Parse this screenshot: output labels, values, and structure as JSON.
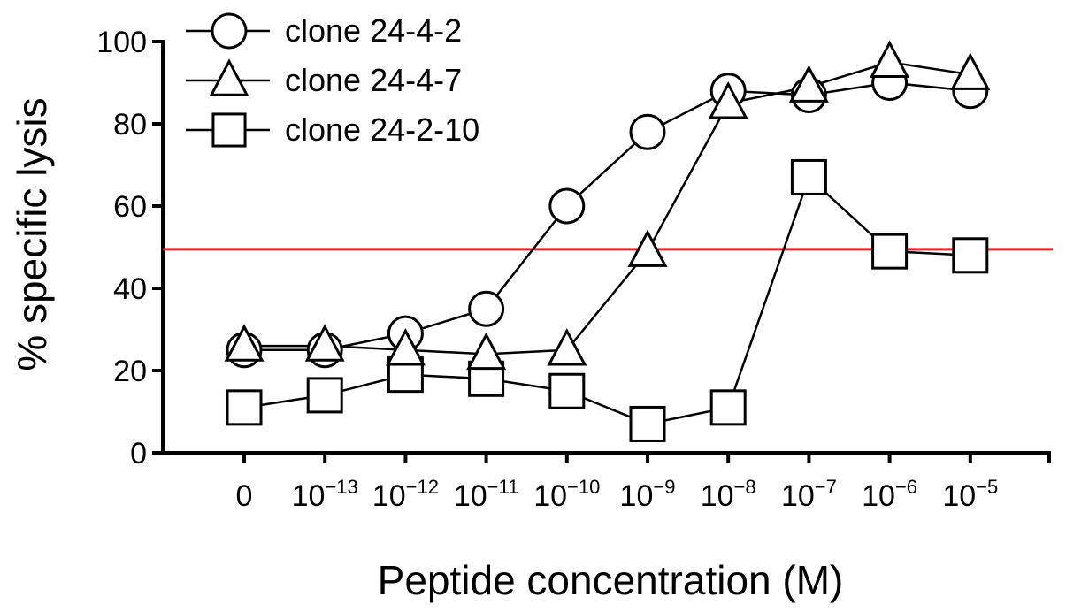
{
  "chart_data": {
    "type": "line",
    "xlabel": "Peptide concentration (M)",
    "ylabel": "% specific lysis",
    "ylim": [
      0,
      100
    ],
    "yticks": [
      0,
      20,
      40,
      60,
      80,
      100
    ],
    "categories": [
      {
        "base": "0",
        "exp": ""
      },
      {
        "base": "10",
        "exp": "−13"
      },
      {
        "base": "10",
        "exp": "−12"
      },
      {
        "base": "10",
        "exp": "−11"
      },
      {
        "base": "10",
        "exp": "−10"
      },
      {
        "base": "10",
        "exp": "−9"
      },
      {
        "base": "10",
        "exp": "−8"
      },
      {
        "base": "10",
        "exp": "−7"
      },
      {
        "base": "10",
        "exp": "−6"
      },
      {
        "base": "10",
        "exp": "−5"
      }
    ],
    "series": [
      {
        "name": "clone  24-4-2",
        "marker": "circle",
        "values": [
          25,
          25,
          29,
          35,
          60,
          78,
          88,
          87,
          90,
          88
        ]
      },
      {
        "name": "clone  24-4-7",
        "marker": "triangle",
        "values": [
          26,
          26,
          25,
          24,
          25,
          49,
          85,
          89,
          95,
          92
        ]
      },
      {
        "name": "clone  24-2-10",
        "marker": "square",
        "values": [
          11,
          14,
          19,
          18,
          15,
          7,
          11,
          67,
          49,
          48
        ]
      }
    ],
    "reference_line": {
      "y": 49.5,
      "color": "#e8232a"
    },
    "legend_position": "top-left",
    "grid": false
  }
}
